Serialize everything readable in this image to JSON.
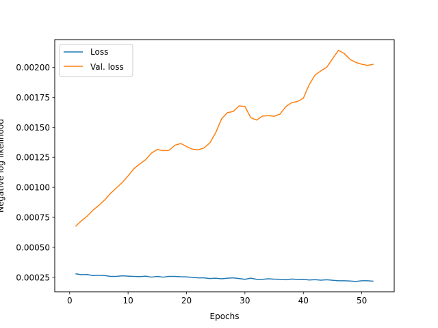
{
  "chart_data": {
    "type": "line",
    "title": "",
    "xlabel": "Epochs",
    "ylabel": "Negative log likelihood",
    "xlim": [
      -2.55,
      55.55
    ],
    "ylim": [
      0.00013,
      0.00223
    ],
    "xticks": [
      0,
      10,
      20,
      30,
      40,
      50
    ],
    "yticks": [
      0.00025,
      0.0005,
      0.00075,
      0.001,
      0.00125,
      0.0015,
      0.00175,
      0.002
    ],
    "ytick_labels": [
      "0.00025",
      "0.00050",
      "0.00075",
      "0.00100",
      "0.00125",
      "0.00150",
      "0.00175",
      "0.00200"
    ],
    "grid": false,
    "legend_position": "top-left",
    "x": [
      1,
      2,
      3,
      4,
      5,
      6,
      7,
      8,
      9,
      10,
      11,
      12,
      13,
      14,
      15,
      16,
      17,
      18,
      19,
      20,
      21,
      22,
      23,
      24,
      25,
      26,
      27,
      28,
      29,
      30,
      31,
      32,
      33,
      34,
      35,
      36,
      37,
      38,
      39,
      40,
      41,
      42,
      43,
      44,
      45,
      46,
      47,
      48,
      49,
      50,
      51,
      52
    ],
    "series": [
      {
        "name": "Loss",
        "color": "#1f77b4",
        "values": [
          0.00028,
          0.000272,
          0.000274,
          0.000265,
          0.000268,
          0.000265,
          0.000258,
          0.000258,
          0.000263,
          0.00026,
          0.000258,
          0.000256,
          0.00026,
          0.000252,
          0.000258,
          0.000252,
          0.000258,
          0.000258,
          0.000255,
          0.000254,
          0.00025,
          0.000246,
          0.000246,
          0.00024,
          0.000243,
          0.000238,
          0.000243,
          0.000246,
          0.00024,
          0.000234,
          0.000243,
          0.000234,
          0.000234,
          0.000238,
          0.000235,
          0.000234,
          0.00023,
          0.000236,
          0.000233,
          0.000234,
          0.000228,
          0.000231,
          0.000227,
          0.00023,
          0.000226,
          0.000222,
          0.000222,
          0.00022,
          0.000216,
          0.000222,
          0.000222,
          0.000218
        ]
      },
      {
        "name": "Val. loss",
        "color": "#ff7f0e",
        "values": [
          0.000675,
          0.00072,
          0.00076,
          0.00081,
          0.00085,
          0.000895,
          0.00095,
          0.000995,
          0.00104,
          0.001095,
          0.001155,
          0.001195,
          0.00123,
          0.001285,
          0.001315,
          0.001305,
          0.001308,
          0.00135,
          0.001365,
          0.00134,
          0.001318,
          0.001312,
          0.001328,
          0.00137,
          0.001455,
          0.00157,
          0.001622,
          0.001632,
          0.001678,
          0.001673,
          0.00158,
          0.00156,
          0.001593,
          0.001597,
          0.001592,
          0.00161,
          0.001672,
          0.001705,
          0.001715,
          0.001742,
          0.001855,
          0.001935,
          0.00197,
          0.002,
          0.00207,
          0.00214,
          0.002115,
          0.002065,
          0.00204,
          0.002025,
          0.002015,
          0.002025
        ]
      }
    ]
  }
}
